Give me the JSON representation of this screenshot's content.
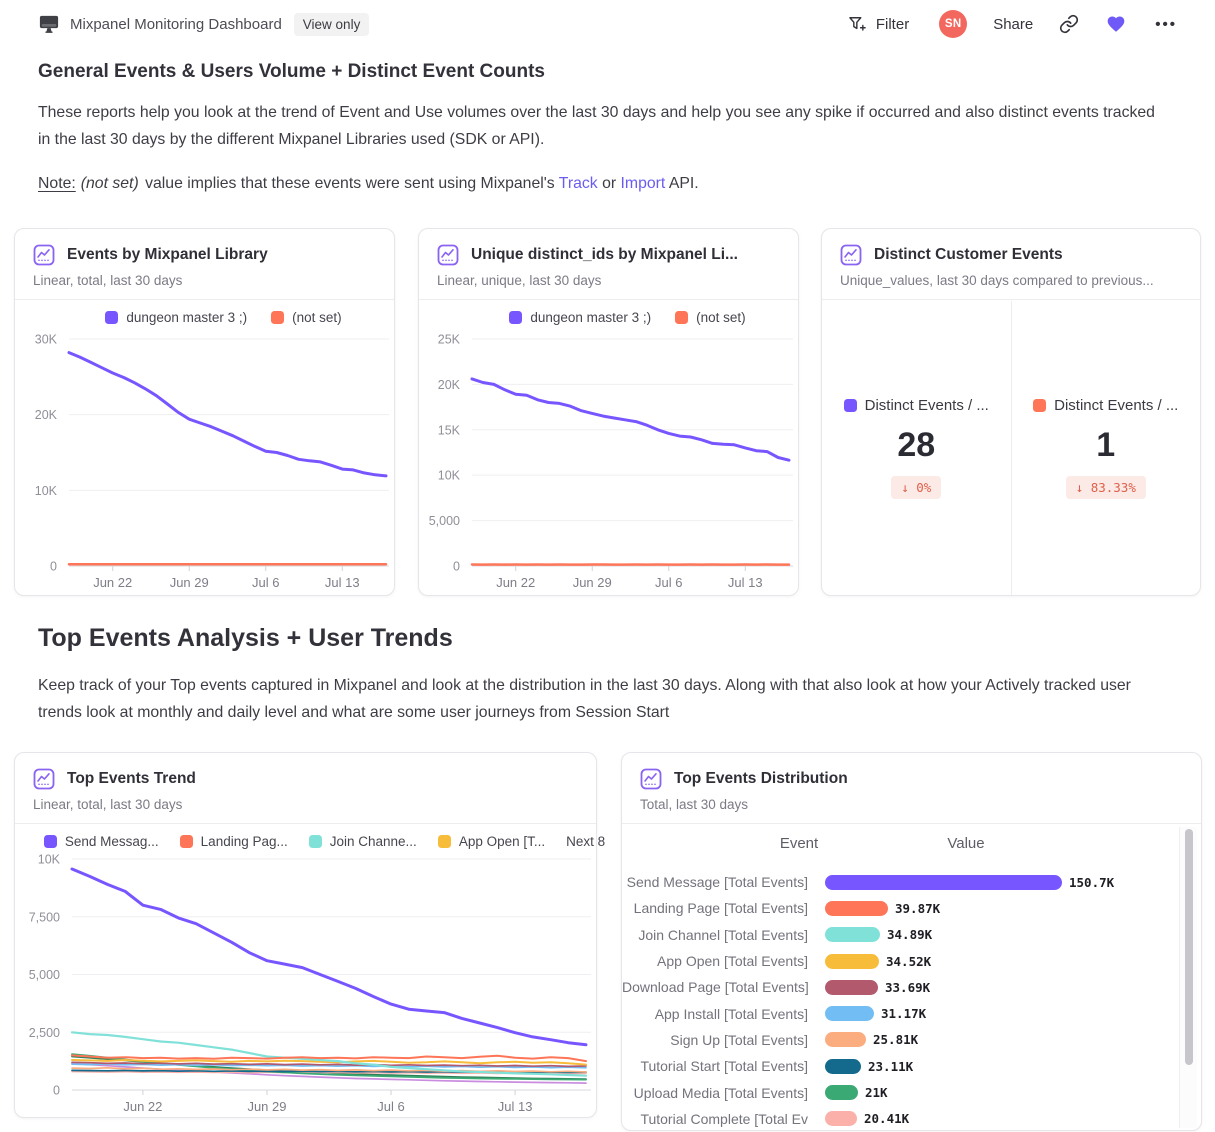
{
  "header": {
    "title": "Mixpanel Monitoring Dashboard",
    "badge": "View only",
    "filter_label": "Filter",
    "avatar_initials": "SN",
    "share_label": "Share",
    "more_label": "•••"
  },
  "section1": {
    "heading": "General Events & Users Volume + Distinct Event Counts",
    "body": "These reports help you look at the trend of Event and Use volumes over the last 30 days and help you see any spike if occurred and also distinct events tracked in the last 30 days by the different Mixpanel Libraries used (SDK or API).",
    "note_label": "Note:",
    "note_italic": "(not set)",
    "note_mid": " value implies that these events were sent using Mixpanel's ",
    "link_track": "Track",
    "note_or": " or ",
    "link_import": "Import",
    "note_end": " API."
  },
  "section2": {
    "heading": "Top Events Analysis + User Trends",
    "body": "Keep track of your Top events captured in Mixpanel and look at the distribution in the last 30 days. Along with that also look at how your Actively tracked user trends look at monthly and daily level and what are some user journeys from Session Start"
  },
  "chart_data": [
    {
      "id": "events_by_library",
      "type": "line",
      "title": "Events by Mixpanel Library",
      "subtitle": "Linear, total, last 30 days",
      "legend": [
        {
          "label": "dungeon master 3 ;)",
          "color": "#7856FF"
        },
        {
          "label": "(not set)",
          "color": "#FF7557"
        }
      ],
      "x_ticks": [
        {
          "index": 4,
          "label": "Jun 22"
        },
        {
          "index": 11,
          "label": "Jun 29"
        },
        {
          "index": 18,
          "label": "Jul 6"
        },
        {
          "index": 25,
          "label": "Jul 13"
        }
      ],
      "y_ticks": [
        {
          "value": 0,
          "label": "0"
        },
        {
          "value": 10000,
          "label": "10K"
        },
        {
          "value": 20000,
          "label": "20K"
        },
        {
          "value": 30000,
          "label": "30K"
        }
      ],
      "ylim": [
        0,
        30000
      ],
      "series": [
        {
          "name": "dungeon master 3 ;)",
          "color": "#7856FF",
          "values": [
            28200,
            27600,
            26900,
            26200,
            25500,
            24900,
            24200,
            23400,
            22500,
            21400,
            20300,
            19400,
            18900,
            18400,
            17800,
            17200,
            16500,
            15800,
            15150,
            15000,
            14600,
            14100,
            13900,
            13750,
            13300,
            12800,
            12700,
            12300,
            12050,
            11900
          ]
        },
        {
          "name": "(not set)",
          "color": "#FF7557",
          "values": [
            230,
            225,
            228,
            232,
            226,
            229,
            231,
            227,
            230,
            228,
            226,
            231,
            229,
            227,
            230,
            232,
            228,
            226,
            229,
            231,
            227,
            230,
            228,
            231,
            226,
            229,
            232,
            228,
            230,
            227
          ]
        }
      ]
    },
    {
      "id": "unique_ids",
      "type": "line",
      "title": "Unique distinct_ids by Mixpanel Li...",
      "subtitle": "Linear, unique, last 30 days",
      "legend": [
        {
          "label": "dungeon master 3 ;)",
          "color": "#7856FF"
        },
        {
          "label": "(not set)",
          "color": "#FF7557"
        }
      ],
      "x_ticks": [
        {
          "index": 4,
          "label": "Jun 22"
        },
        {
          "index": 11,
          "label": "Jun 29"
        },
        {
          "index": 18,
          "label": "Jul 6"
        },
        {
          "index": 25,
          "label": "Jul 13"
        }
      ],
      "y_ticks": [
        {
          "value": 0,
          "label": "0"
        },
        {
          "value": 5000,
          "label": "5,000"
        },
        {
          "value": 10000,
          "label": "10K"
        },
        {
          "value": 15000,
          "label": "15K"
        },
        {
          "value": 20000,
          "label": "20K"
        },
        {
          "value": 25000,
          "label": "25K"
        }
      ],
      "ylim": [
        0,
        25000
      ],
      "series": [
        {
          "name": "dungeon master 3 ;)",
          "color": "#7856FF",
          "values": [
            20600,
            20200,
            20000,
            19400,
            18900,
            18800,
            18300,
            18000,
            17900,
            17600,
            17100,
            16800,
            16500,
            16300,
            16100,
            15900,
            15500,
            15000,
            14600,
            14300,
            14200,
            13900,
            13500,
            13400,
            13350,
            13000,
            12700,
            12600,
            11950,
            11650
          ]
        },
        {
          "name": "(not set)",
          "color": "#FF7557",
          "values": [
            160,
            158,
            162,
            159,
            161,
            157,
            160,
            158,
            161,
            159,
            157,
            162,
            160,
            158,
            159,
            161,
            158,
            160,
            157,
            159,
            162,
            158,
            160,
            159,
            157,
            161,
            158,
            160,
            159,
            158
          ]
        }
      ]
    },
    {
      "id": "distinct_customer_events",
      "type": "metric",
      "title": "Distinct Customer Events",
      "subtitle": "Unique_values, last 30 days compared to previous...",
      "metrics": [
        {
          "label": "Distinct Events / ...",
          "swatch_color": "#7856FF",
          "value": "28",
          "change": "↓ 0%"
        },
        {
          "label": "Distinct Events / ...",
          "swatch_color": "#FF7557",
          "value": "1",
          "change": "↓ 83.33%"
        }
      ]
    },
    {
      "id": "top_events_trend",
      "type": "line",
      "title": "Top Events Trend",
      "subtitle": "Linear, total, last 30 days",
      "legend": [
        {
          "label": "Send Messag...",
          "color": "#7856FF"
        },
        {
          "label": "Landing Pag...",
          "color": "#FF7557"
        },
        {
          "label": "Join Channe...",
          "color": "#80E1D9"
        },
        {
          "label": "App Open [T...",
          "color": "#F8BC3B"
        },
        {
          "label": "Next 8",
          "color": null
        }
      ],
      "x_ticks": [
        {
          "index": 4,
          "label": "Jun 22"
        },
        {
          "index": 11,
          "label": "Jun 29"
        },
        {
          "index": 18,
          "label": "Jul 6"
        },
        {
          "index": 25,
          "label": "Jul 13"
        }
      ],
      "y_ticks": [
        {
          "value": 0,
          "label": "0"
        },
        {
          "value": 2500,
          "label": "2,500"
        },
        {
          "value": 5000,
          "label": "5,000"
        },
        {
          "value": 7500,
          "label": "7,500"
        },
        {
          "value": 10000,
          "label": "10K"
        }
      ],
      "ylim": [
        0,
        10000
      ],
      "series": [
        {
          "name": "Send Messag...",
          "color": "#7856FF",
          "values": [
            9570,
            9250,
            8900,
            8600,
            8000,
            7820,
            7450,
            7200,
            6800,
            6400,
            5950,
            5600,
            5450,
            5300,
            5000,
            4700,
            4400,
            4050,
            3720,
            3500,
            3420,
            3350,
            3100,
            2900,
            2700,
            2480,
            2300,
            2180,
            2050,
            1960
          ]
        },
        {
          "name": "Landing Pag...",
          "color": "#FF7557",
          "values": [
            1500,
            1450,
            1400,
            1420,
            1380,
            1400,
            1360,
            1380,
            1350,
            1400,
            1380,
            1360,
            1400,
            1420,
            1380,
            1400,
            1370,
            1420,
            1400,
            1380,
            1450,
            1420,
            1380,
            1440,
            1480,
            1400,
            1360,
            1420,
            1380,
            1250
          ]
        },
        {
          "name": "Join Channe...",
          "color": "#80E1D9",
          "values": [
            2500,
            2420,
            2380,
            2300,
            2200,
            2100,
            2050,
            1950,
            1850,
            1750,
            1600,
            1450,
            1400,
            1350,
            1300,
            1250,
            1150,
            1100,
            1000,
            950,
            900,
            850,
            800,
            780,
            750,
            720,
            700,
            680,
            650,
            620
          ]
        },
        {
          "name": "App Open [T...",
          "color": "#F8BC3B",
          "values": [
            1300,
            1280,
            1260,
            1300,
            1270,
            1240,
            1260,
            1280,
            1250,
            1220,
            1260,
            1240,
            1270,
            1250,
            1220,
            1200,
            1240,
            1260,
            1220,
            1180,
            1200,
            1240,
            1200,
            1160,
            1200,
            1220,
            1180,
            1200,
            1160,
            1100
          ]
        },
        {
          "name": "next-8-1",
          "color": "#B2596E",
          "values": [
            1200,
            1180,
            1150,
            1170,
            1140,
            1160,
            1130,
            1150,
            1120,
            1140,
            1110,
            1130,
            1100,
            1120,
            1090,
            1110,
            1080,
            1100,
            1070,
            1090,
            1060,
            1080,
            1050,
            1070,
            1040,
            1060,
            1030,
            1050,
            1020,
            1040
          ]
        },
        {
          "name": "next-8-2",
          "color": "#72BEF4",
          "values": [
            1120,
            1100,
            1130,
            1090,
            1110,
            1080,
            1100,
            1070,
            1090,
            1060,
            1080,
            1050,
            1070,
            1040,
            1060,
            1030,
            1050,
            1020,
            1040,
            1010,
            1030,
            1000,
            1020,
            990,
            1010,
            980,
            1000,
            970,
            990,
            960
          ]
        },
        {
          "name": "next-8-3",
          "color": "#FBAD80",
          "values": [
            950,
            930,
            960,
            920,
            940,
            900,
            920,
            890,
            910,
            880,
            900,
            870,
            890,
            860,
            880,
            850,
            870,
            840,
            860,
            830,
            850,
            820,
            840,
            810,
            830,
            800,
            820,
            790,
            810,
            780
          ]
        },
        {
          "name": "next-8-4",
          "color": "#136A8D",
          "values": [
            850,
            840,
            830,
            845,
            825,
            835,
            815,
            830,
            810,
            825,
            805,
            820,
            800,
            815,
            795,
            810,
            790,
            805,
            785,
            800,
            780,
            795,
            775,
            790,
            770,
            785,
            765,
            780,
            760,
            775
          ]
        },
        {
          "name": "next-8-5",
          "color": "#3BA974",
          "values": [
            1550,
            1480,
            1400,
            1320,
            1240,
            1160,
            1090,
            1020,
            960,
            900,
            850,
            800,
            760,
            720,
            690,
            660,
            630,
            610,
            590,
            570,
            550,
            530,
            515,
            500,
            490,
            480,
            470,
            460,
            455,
            450
          ]
        },
        {
          "name": "next-8-6",
          "color": "#FBB1A9",
          "values": [
            800,
            790,
            780,
            795,
            775,
            785,
            765,
            780,
            760,
            775,
            755,
            770,
            750,
            765,
            745,
            760,
            740,
            755,
            735,
            750,
            730,
            745,
            725,
            740,
            720,
            735,
            715,
            730,
            710,
            725
          ]
        },
        {
          "name": "next-8-7",
          "color": "#C98CDF",
          "values": [
            1150,
            1100,
            1050,
            1000,
            950,
            900,
            860,
            820,
            780,
            740,
            700,
            660,
            620,
            590,
            560,
            530,
            500,
            480,
            460,
            440,
            420,
            400,
            385,
            370,
            355,
            340,
            330,
            320,
            310,
            300
          ]
        },
        {
          "name": "next-8-8",
          "color": "#2F7E56",
          "values": [
            1450,
            1400,
            1340,
            1280,
            1220,
            1160,
            1100,
            1050,
            1000,
            950,
            900,
            860,
            820,
            780,
            750,
            720,
            690,
            660,
            640,
            620,
            600,
            580,
            560,
            545,
            530,
            515,
            500,
            490,
            480,
            470
          ]
        }
      ]
    },
    {
      "id": "top_events_distribution",
      "type": "bar",
      "title": "Top Events Distribution",
      "subtitle": "Total, last 30 days",
      "columns": [
        "Event",
        "Value"
      ],
      "max_value": 150700,
      "rows": [
        {
          "event": "Send Message [Total Events]",
          "value": 150700,
          "value_label": "150.7K",
          "color": "#7856FF"
        },
        {
          "event": "Landing Page [Total Events]",
          "value": 39870,
          "value_label": "39.87K",
          "color": "#FF7557"
        },
        {
          "event": "Join Channel [Total Events]",
          "value": 34890,
          "value_label": "34.89K",
          "color": "#80E1D9"
        },
        {
          "event": "App Open [Total Events]",
          "value": 34520,
          "value_label": "34.52K",
          "color": "#F8BC3B"
        },
        {
          "event": "Download Page [Total Events]",
          "value": 33690,
          "value_label": "33.69K",
          "color": "#B2596E"
        },
        {
          "event": "App Install [Total Events]",
          "value": 31170,
          "value_label": "31.17K",
          "color": "#72BEF4"
        },
        {
          "event": "Sign Up [Total Events]",
          "value": 25810,
          "value_label": "25.81K",
          "color": "#FBAD80"
        },
        {
          "event": "Tutorial Start [Total Events]",
          "value": 23110,
          "value_label": "23.11K",
          "color": "#136A8D"
        },
        {
          "event": "Upload Media [Total Events]",
          "value": 21000,
          "value_label": "21K",
          "color": "#3BA974"
        },
        {
          "event": "Tutorial Complete [Total Ev",
          "value": 20410,
          "value_label": "20.41K",
          "color": "#FBB1A9"
        }
      ]
    }
  ]
}
